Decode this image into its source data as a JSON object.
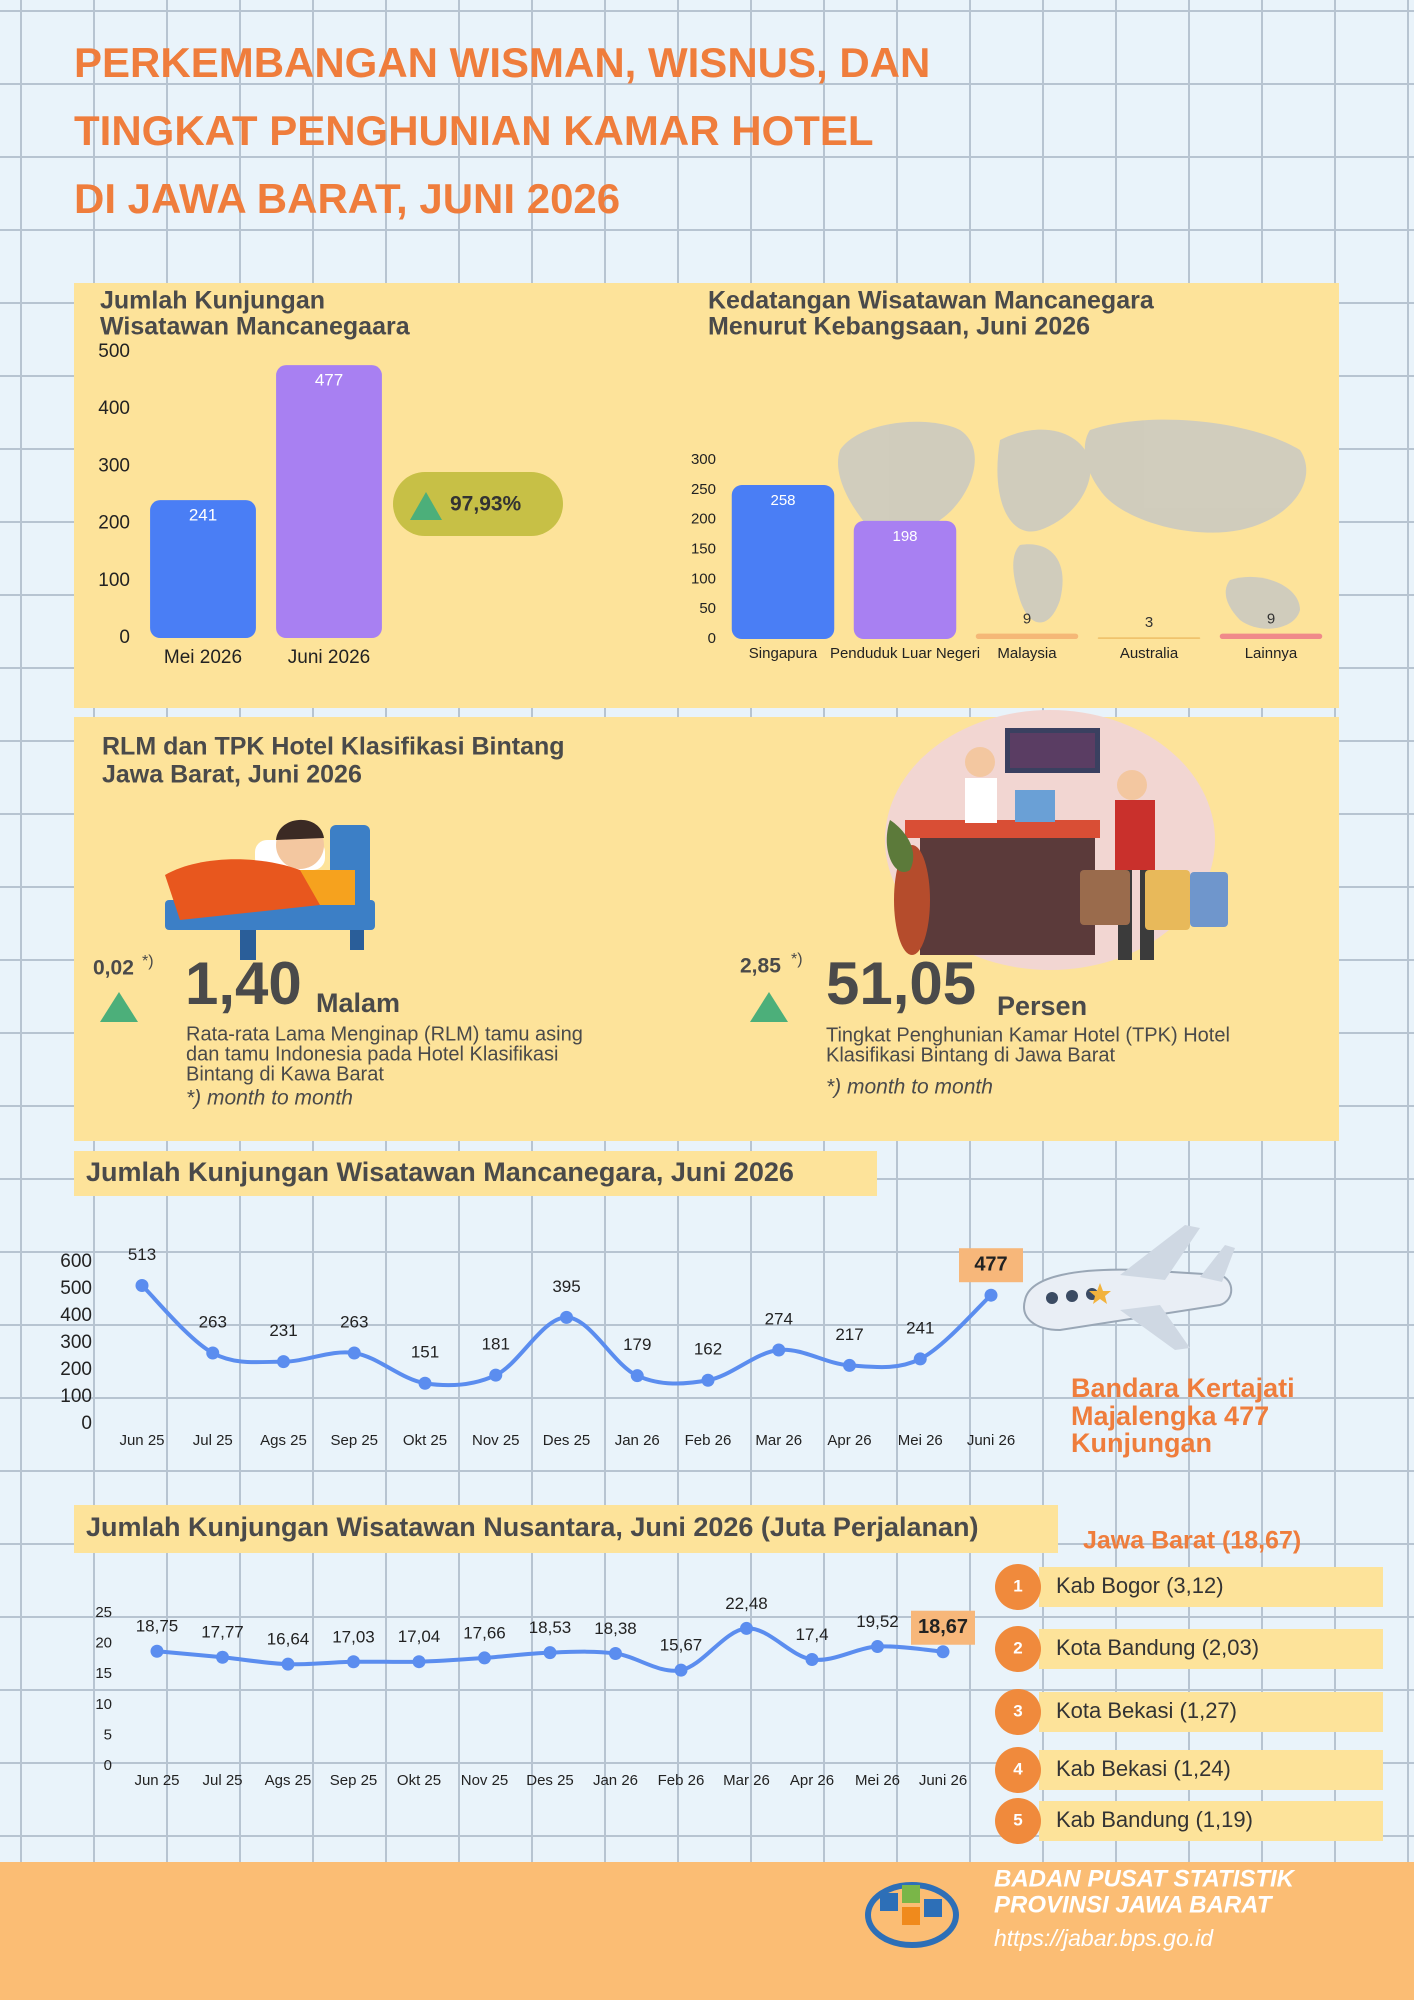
{
  "title": [
    "PERKEMBANGAN WISMAN, WISNUS, DAN",
    "TINGKAT PENGHUNIAN KAMAR HOTEL",
    "DI JAWA BARAT, JUNI 2026"
  ],
  "chart_data": [
    {
      "type": "bar",
      "title": [
        "Jumlah Kunjungan",
        "Wisatawan Mancanegaara"
      ],
      "categories": [
        "Mei 2026",
        "Juni 2026"
      ],
      "values": [
        241,
        477
      ],
      "colors": [
        "#4a7ef5",
        "#a880f2"
      ],
      "ylim": [
        0,
        500
      ],
      "yticks": [
        0,
        100,
        200,
        300,
        400,
        500
      ],
      "annotation": "97,93%"
    },
    {
      "type": "bar",
      "title": [
        "Kedatangan Wisatawan Mancanegara",
        "Menurut Kebangsaan, Juni 2026"
      ],
      "categories": [
        "Singapura",
        "Penduduk Luar Negeri",
        "Malaysia",
        "Australia",
        "Lainnya"
      ],
      "values": [
        258,
        198,
        9,
        3,
        9
      ],
      "colors": [
        "#4a7ef5",
        "#a880f2",
        "#f5b877",
        "#f0c36d",
        "#f08a8a"
      ],
      "ylim": [
        0,
        300
      ],
      "yticks": [
        0,
        50,
        100,
        150,
        200,
        250,
        300
      ]
    },
    {
      "type": "line",
      "title": "Jumlah Kunjungan Wisatawan Mancanegara, Juni 2026",
      "categories": [
        "Jun 25",
        "Jul 25",
        "Ags 25",
        "Sep 25",
        "Okt 25",
        "Nov 25",
        "Des 25",
        "Jan 26",
        "Feb 26",
        "Mar 26",
        "Apr 26",
        "Mei 26",
        "Juni 26"
      ],
      "values": [
        513,
        263,
        231,
        263,
        151,
        181,
        395,
        179,
        162,
        274,
        217,
        241,
        477
      ],
      "color": "#5b8def",
      "ylim": [
        0,
        600
      ],
      "yticks": [
        0,
        100,
        200,
        300,
        400,
        500,
        600
      ]
    },
    {
      "type": "line",
      "title": "Jumlah Kunjungan Wisatawan Nusantara, Juni 2026 (Juta Perjalanan)",
      "categories": [
        "Jun 25",
        "Jul 25",
        "Ags 25",
        "Sep 25",
        "Okt 25",
        "Nov 25",
        "Des 25",
        "Jan 26",
        "Feb 26",
        "Mar 26",
        "Apr 26",
        "Mei 26",
        "Juni 26"
      ],
      "values": [
        18.75,
        17.77,
        16.64,
        17.03,
        17.04,
        17.66,
        18.53,
        18.38,
        15.67,
        22.48,
        17.4,
        19.52,
        18.67
      ],
      "value_labels": [
        "18,75",
        "17,77",
        "16,64",
        "17,03",
        "17,04",
        "17,66",
        "18,53",
        "18,38",
        "15,67",
        "22,48",
        "17,4",
        "19,52",
        "18,67"
      ],
      "color": "#5b8def",
      "ylim": [
        0,
        25
      ],
      "yticks": [
        0,
        5,
        10,
        15,
        20,
        25
      ]
    }
  ],
  "hotel": {
    "title": [
      "RLM dan TPK Hotel Klasifikasi Bintang",
      "Jawa Barat, Juni 2026"
    ],
    "rlm": {
      "change": "0,02",
      "change_mark": "*)",
      "value": "1,40",
      "unit": "Malam",
      "description": [
        "Rata-rata Lama Menginap (RLM) tamu asing",
        "dan tamu Indonesia pada Hotel Klasifikasi",
        "Bintang di Kawa Barat"
      ],
      "note": "*) month to month"
    },
    "tpk": {
      "change": "2,85",
      "change_mark": "*)",
      "value": "51,05",
      "unit": "Persen",
      "description": [
        "Tingkat Penghunian Kamar Hotel (TPK) Hotel",
        "Klasifikasi Bintang di Jawa Barat"
      ],
      "note": "*) month to month"
    }
  },
  "airport_note": [
    "Bandara Kertajati",
    "Majalengka 477",
    "Kunjungan"
  ],
  "ranking": {
    "title": "Jawa Barat (18,67)",
    "items": [
      {
        "rank": "1",
        "label": "Kab Bogor (3,12)"
      },
      {
        "rank": "2",
        "label": "Kota Bandung (2,03)"
      },
      {
        "rank": "3",
        "label": "Kota Bekasi (1,27)"
      },
      {
        "rank": "4",
        "label": "Kab Bekasi (1,24)"
      },
      {
        "rank": "5",
        "label": "Kab Bandung (1,19)"
      }
    ]
  },
  "footer": {
    "org": [
      "BADAN PUSAT STATISTIK",
      "PROVINSI JAWA BARAT"
    ],
    "url": "https://jabar.bps.go.id"
  }
}
